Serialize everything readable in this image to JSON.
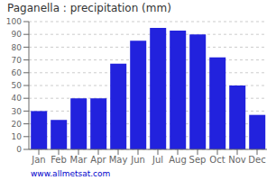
{
  "chart_data": {
    "type": "bar",
    "title": "Paganella : precipitation (mm)",
    "categories": [
      "Jan",
      "Feb",
      "Mar",
      "Apr",
      "May",
      "Jun",
      "Jul",
      "Aug",
      "Sep",
      "Oct",
      "Nov",
      "Dec"
    ],
    "values": [
      30,
      23,
      40,
      40,
      67,
      85,
      95,
      93,
      90,
      72,
      50,
      27
    ],
    "color": "#2222dd",
    "ylim": [
      0,
      100
    ],
    "yticks": [
      0,
      10,
      20,
      30,
      40,
      50,
      60,
      70,
      80,
      90,
      100
    ],
    "grid": true,
    "annotations": [
      "www.allmetsat.com"
    ]
  }
}
